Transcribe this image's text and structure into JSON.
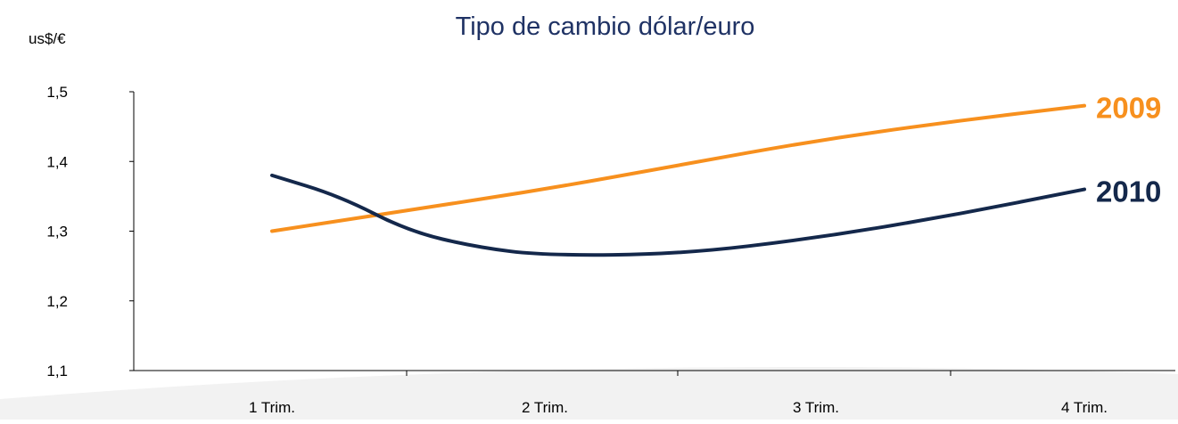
{
  "chart_data": {
    "type": "line",
    "title": "Tipo de cambio dólar/euro",
    "ylabel": "us$/€",
    "xlabel": "",
    "categories": [
      "1 Trim.",
      "2 Trim.",
      "3 Trim.",
      "4 Trim."
    ],
    "yticks": [
      "1,1",
      "1,2",
      "1,3",
      "1,4",
      "1,5"
    ],
    "ylim": [
      1.1,
      1.5
    ],
    "grid": false,
    "legend": "end-of-line labels",
    "series": [
      {
        "name": "2009",
        "color": "#f7901e",
        "points": [
          {
            "x": 1.0,
            "y": 1.3
          },
          {
            "x": 1.5,
            "y": 1.33
          },
          {
            "x": 2.0,
            "y": 1.36
          },
          {
            "x": 2.5,
            "y": 1.395
          },
          {
            "x": 3.0,
            "y": 1.43
          },
          {
            "x": 3.5,
            "y": 1.457
          },
          {
            "x": 4.0,
            "y": 1.48
          }
        ]
      },
      {
        "name": "2010",
        "color": "#14284b",
        "points": [
          {
            "x": 1.0,
            "y": 1.38
          },
          {
            "x": 1.25,
            "y": 1.35
          },
          {
            "x": 1.5,
            "y": 1.3
          },
          {
            "x": 1.75,
            "y": 1.277
          },
          {
            "x": 2.0,
            "y": 1.265
          },
          {
            "x": 2.5,
            "y": 1.267
          },
          {
            "x": 3.0,
            "y": 1.29
          },
          {
            "x": 3.5,
            "y": 1.322
          },
          {
            "x": 4.0,
            "y": 1.36
          }
        ]
      }
    ]
  }
}
